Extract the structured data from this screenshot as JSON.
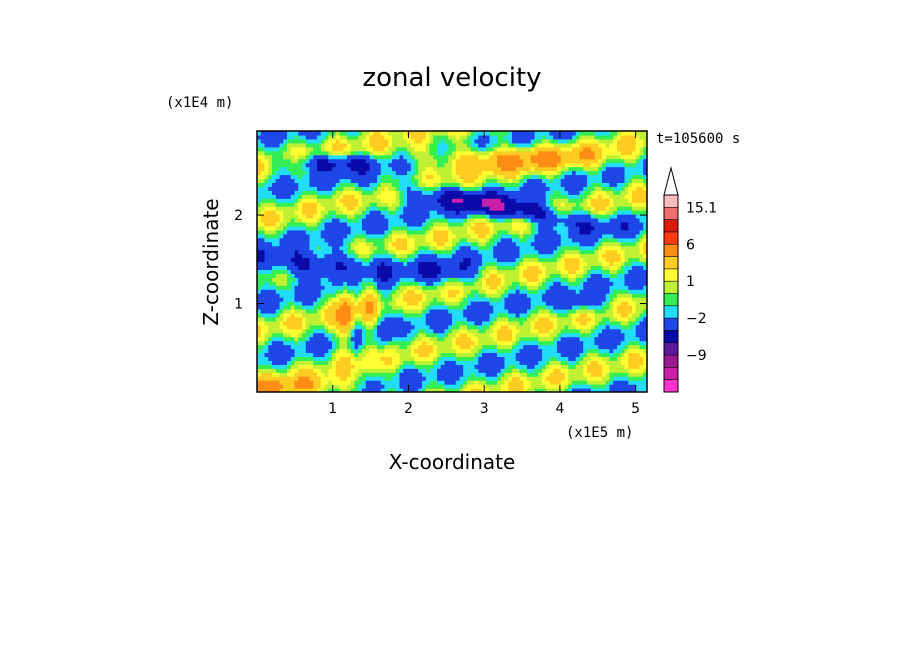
{
  "chart_data": {
    "type": "heatmap",
    "title": "zonal velocity",
    "xlabel": "X-coordinate",
    "ylabel": "Z-coordinate",
    "x_unit": "(x1E5 m)",
    "y_unit": "(x1E4 m)",
    "time_label": "t=105600 s",
    "xlim": [
      0,
      5.15
    ],
    "ylim": [
      0,
      2.95
    ],
    "x_ticks": [
      1,
      2,
      3,
      4,
      5
    ],
    "y_ticks": [
      1,
      2
    ],
    "colorbar": {
      "labels": [
        "15.1",
        "6",
        "1",
        "−2",
        "−9"
      ],
      "label_values": [
        15.1,
        6,
        1,
        -2,
        -9
      ],
      "levels": [
        -15,
        -12,
        -9,
        -6,
        -3,
        -2,
        -1,
        0,
        1,
        2,
        3,
        6,
        9,
        12,
        15.1
      ],
      "colors": [
        "#ff33cc",
        "#cc1fa8",
        "#99198f",
        "#5a1a9a",
        "#0a0aa8",
        "#1f46e6",
        "#22ddff",
        "#33ee55",
        "#bff033",
        "#ffff33",
        "#ffcc22",
        "#ff8c14",
        "#ff3a12",
        "#dd1a10",
        "#ee7070",
        "#ffbcbc"
      ],
      "extend": "max"
    },
    "colormap_by_value": [
      {
        "v": -12,
        "color": "#cc1fa8"
      },
      {
        "v": -8,
        "color": "#0a0aa8"
      },
      {
        "v": -4,
        "color": "#1f46e6"
      },
      {
        "v": -1.5,
        "color": "#22ddff"
      },
      {
        "v": -0.5,
        "color": "#33ee55"
      },
      {
        "v": 0.5,
        "color": "#bff033"
      },
      {
        "v": 1.5,
        "color": "#ffff33"
      },
      {
        "v": 2.5,
        "color": "#ffcc22"
      },
      {
        "v": 4.5,
        "color": "#ff8c14"
      },
      {
        "v": 7.5,
        "color": "#ff3a12"
      }
    ]
  }
}
